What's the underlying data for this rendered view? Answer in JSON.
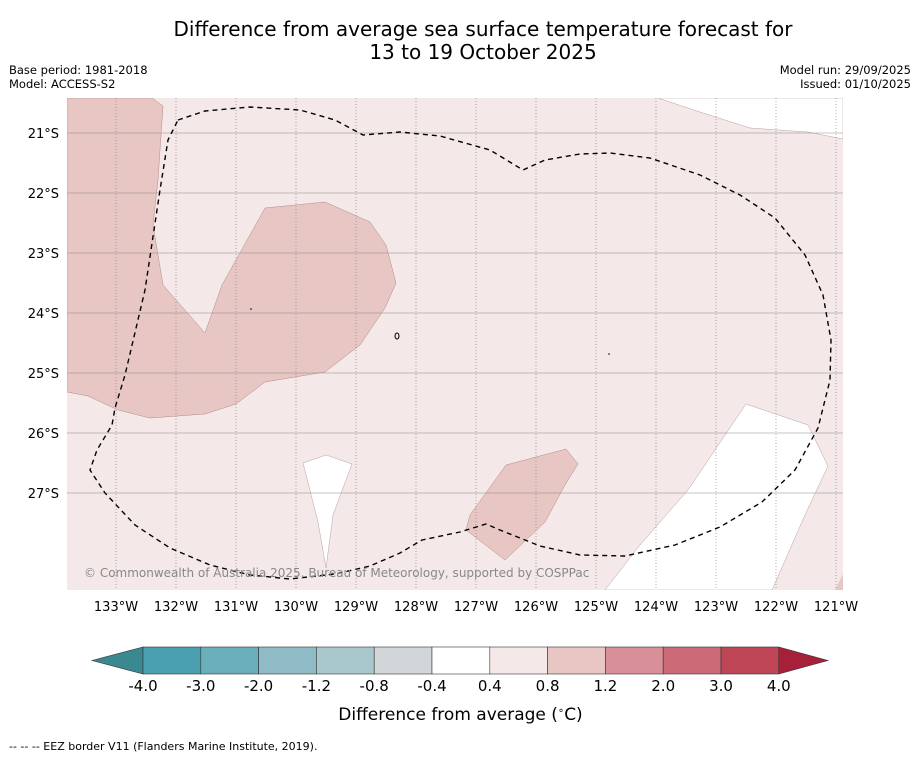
{
  "title_line1": "Difference from average sea surface temperature forecast for",
  "title_line2": "13 to 19 October 2025",
  "base_period": "Base period: 1981-2018",
  "model": "Model: ACCESS-S2",
  "model_run": "Model run: 29/09/2025",
  "issued": "Issued: 01/10/2025",
  "copyright": "© Commonwealth of Australia 2025, Bureau of Meteorology, supported by COSPPac",
  "lat_labels": [
    "21°S",
    "22°S",
    "23°S",
    "24°S",
    "25°S",
    "26°S",
    "27°S"
  ],
  "lon_labels": [
    "133°W",
    "132°W",
    "131°W",
    "130°W",
    "129°W",
    "128°W",
    "127°W",
    "126°W",
    "125°W",
    "124°W",
    "123°W",
    "122°W",
    "121°W"
  ],
  "colorbar": {
    "labels": [
      "-4.0",
      "-3.0",
      "-2.0",
      "-1.2",
      "-0.8",
      "-0.4",
      "0.4",
      "0.8",
      "1.2",
      "2.0",
      "3.0",
      "4.0"
    ],
    "colors": [
      "#4aa0b0",
      "#6aaeba",
      "#8ebbc5",
      "#a9c8cc",
      "#d3d6d9",
      "#ffffff",
      "#f5e8e8",
      "#e8c6c3",
      "#d98f98",
      "#cc6b77",
      "#bf4657"
    ],
    "low_color": "#3a8890",
    "high_color": "#a6203a",
    "title": "Difference from average ($^\\circ$C)"
  },
  "footnote": "--  --  -- EEZ border V11 (Flanders Marine Institute, 2019).",
  "colors": {
    "base_fill": "#f5e8e8",
    "warm_fill": "#e8c6c3",
    "neutral_fill": "#ffffff",
    "eez_line": "#000000",
    "grid_line": "#7f7f7f"
  }
}
